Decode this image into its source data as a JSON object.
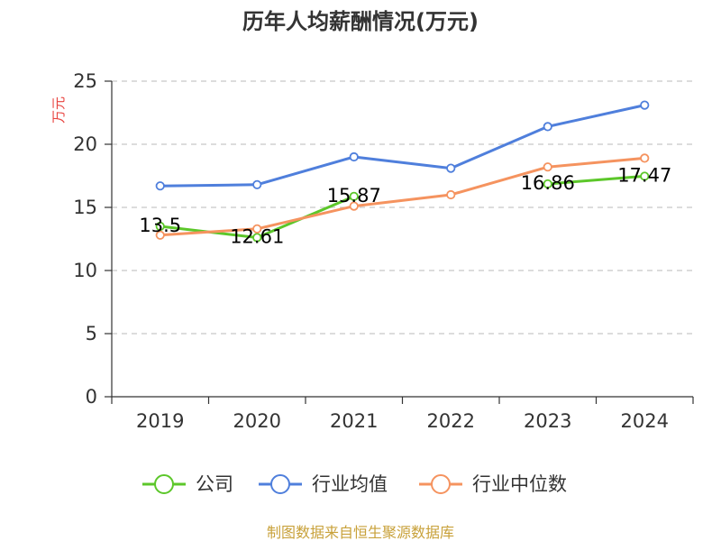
{
  "chart_data": {
    "type": "line",
    "title": "历年人均薪酬情况(万元)",
    "ylabel": "万元",
    "xlabel": "",
    "categories": [
      "2019",
      "2020",
      "2021",
      "2022",
      "2023",
      "2024"
    ],
    "ylim": [
      0,
      25
    ],
    "yticks": [
      0,
      5,
      10,
      15,
      20,
      25
    ],
    "grid": true,
    "legend_position": "bottom",
    "series": [
      {
        "name": "公司",
        "values": [
          13.5,
          12.61,
          15.87,
          null,
          16.86,
          17.47
        ],
        "color": "#5cc72a",
        "labels": [
          "13.5",
          "12.61",
          "15.87",
          "",
          "16.86",
          "17.47"
        ]
      },
      {
        "name": "行业均值",
        "values": [
          16.7,
          16.8,
          19.0,
          18.1,
          21.4,
          23.1
        ],
        "color": "#4f7fdc"
      },
      {
        "name": "行业中位数",
        "values": [
          12.8,
          13.3,
          15.1,
          16.0,
          18.2,
          18.9
        ],
        "color": "#f5935f"
      }
    ]
  },
  "source_text": "制图数据来自恒生聚源数据库"
}
